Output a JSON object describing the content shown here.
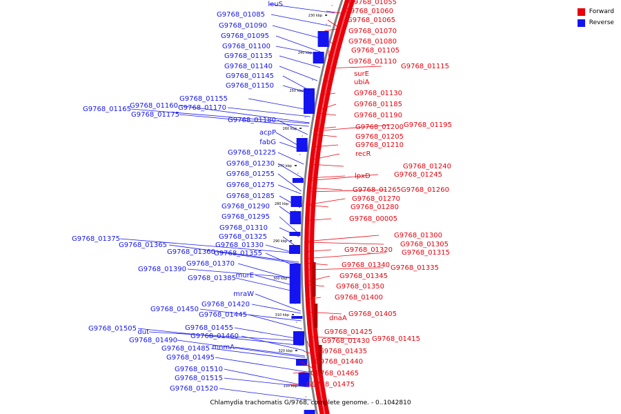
{
  "legend": {
    "forward": {
      "label": "Forward",
      "color": "#e8000b"
    },
    "reverse": {
      "label": "Reverse",
      "color": "#1414f0"
    }
  },
  "caption": "Chlamydia trachomatis G/9768, complete genome. - 0..1042810",
  "colors": {
    "forward": "#e8000b",
    "reverse": "#1414f0",
    "backbone": "#808080"
  },
  "scale_labels": [
    "230 kbp",
    "240 kbp",
    "250 kbp",
    "260 kbp",
    "270 kbp",
    "280 kbp",
    "290 kbp",
    "300 kbp",
    "310 kbp",
    "320 kbp",
    "330 kbp"
  ],
  "forward_labels": [
    "G9768_01055",
    "G9768_01060",
    "G9768_01065",
    "G9768_01070",
    "G9768_01080",
    "G9768_01105",
    "G9768_01110",
    "G9768_01115",
    "surE",
    "ubiA",
    "G9768_01130",
    "G9768_01185",
    "G9768_01190",
    "G9768_01200",
    "G9768_01195",
    "G9768_01205",
    "G9768_01210",
    "recR",
    "G9768_01240",
    "lpxD",
    "G9768_01245",
    "G9768_01265",
    "G9768_01260",
    "G9768_01270",
    "G9768_01280",
    "G9768_00005",
    "G9768_01300",
    "G9768_01305",
    "G9768_01320",
    "G9768_01315",
    "G9768_01340",
    "G9768_01335",
    "G9768_01345",
    "G9768_01350",
    "G9768_01400",
    "dnaA",
    "G9768_01405",
    "G9768_01425",
    "G9768_01430",
    "G9768_01415",
    "G9768_01435",
    "G9768_01440",
    "G9768_01465",
    "G9768_01475"
  ],
  "reverse_labels": [
    "leuS",
    "G9768_01085",
    "G9768_01090",
    "G9768_01095",
    "G9768_01100",
    "G9768_01135",
    "G9768_01140",
    "G9768_01145",
    "G9768_01150",
    "G9768_01155",
    "G9768_01165",
    "G9768_01160",
    "G9768_01170",
    "G9768_01175",
    "G9768_01180",
    "acpP",
    "fabG",
    "G9768_01225",
    "G9768_01230",
    "G9768_01255",
    "G9768_01275",
    "G9768_01285",
    "G9768_01290",
    "G9768_01295",
    "G9768_01310",
    "G9768_01325",
    "G9768_01375",
    "G9768_01365",
    "G9768_01330",
    "G9768_01360",
    "G9768_01355",
    "G9768_01370",
    "G9768_01390",
    "murE",
    "G9768_01385",
    "mraW",
    "G9768_01420",
    "G9768_01450",
    "G9768_01445",
    "G9768_01505",
    "dut",
    "G9768_01455",
    "G9768_01460",
    "G9768_01490",
    "mnmA",
    "G9768_01485",
    "G9768_01495",
    "G9768_01510",
    "G9768_01515",
    "G9768_01520"
  ]
}
